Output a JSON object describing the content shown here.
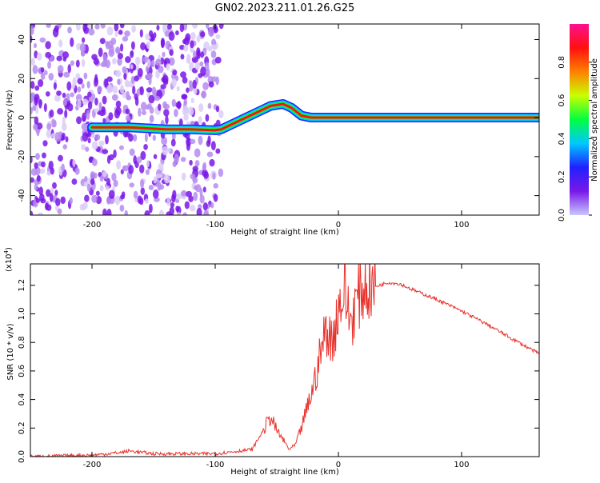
{
  "title": "GN02.2023.211.01.26.G25",
  "colors": {
    "snr_line": "#e8312b",
    "cbar_stops": [
      "#c8c8ff",
      "#7a18e8",
      "#2020ff",
      "#00c8ff",
      "#00ff40",
      "#c8ff00",
      "#ff8000",
      "#ff1010",
      "#ff1090"
    ]
  },
  "chart_data": [
    {
      "type": "heatmap",
      "xlabel": "Height of straight line (km)",
      "ylabel": "Frequency (Hz)",
      "xlim": [
        -250,
        163
      ],
      "ylim": [
        -50,
        48
      ],
      "xticks": [
        "-200",
        "-100",
        "0",
        "100"
      ],
      "yticks": [
        "-40",
        "-20",
        "0",
        "20",
        "40"
      ],
      "colorbar": {
        "label": "Normalized spectral amplitude",
        "range": [
          0,
          1
        ],
        "ticks": [
          "0.0",
          "0.2",
          "0.4",
          "0.6",
          "0.8"
        ]
      },
      "noise_region_x": [
        -250,
        -95
      ],
      "trace": {
        "x": [
          -200,
          -185,
          -170,
          -140,
          -120,
          -100,
          -95,
          -85,
          -75,
          -65,
          -55,
          -45,
          -38,
          -30,
          -22,
          -15,
          -10,
          0,
          50,
          100,
          163
        ],
        "y": [
          -5,
          -5,
          -5,
          -6,
          -6,
          -6.5,
          -6,
          -3,
          0,
          3,
          6,
          7,
          5,
          1,
          0,
          0,
          0,
          0,
          0,
          0,
          0
        ]
      }
    },
    {
      "type": "line",
      "xlabel": "Height of straight line (km)",
      "ylabel": "SNR (10 * v/v)",
      "y_multiplier": "(x10",
      "y_multiplier_exp": "4",
      "xlim": [
        -250,
        163
      ],
      "ylim": [
        0,
        1.35
      ],
      "xticks": [
        "-200",
        "-100",
        "0",
        "100"
      ],
      "yticks": [
        "0.0",
        "0.2",
        "0.4",
        "0.6",
        "0.8",
        "1.0",
        "1.2"
      ],
      "series": [
        {
          "x": [
            -250,
            -200,
            -175,
            -170,
            -150,
            -100,
            -70,
            -60,
            -55,
            -50,
            -45,
            -40,
            -35,
            -30,
            -25,
            -20,
            -15,
            -10,
            -5,
            0,
            5,
            10,
            15,
            20,
            25,
            30,
            40,
            50,
            60,
            80,
            100,
            120,
            140,
            163
          ],
          "y": [
            0.0,
            0.01,
            0.03,
            0.04,
            0.02,
            0.02,
            0.05,
            0.2,
            0.28,
            0.18,
            0.12,
            0.05,
            0.08,
            0.2,
            0.35,
            0.5,
            0.7,
            0.9,
            0.8,
            1.05,
            1.15,
            0.95,
            1.1,
            1.18,
            1.2,
            1.19,
            1.22,
            1.21,
            1.17,
            1.1,
            1.02,
            0.93,
            0.83,
            0.72
          ]
        }
      ]
    }
  ]
}
